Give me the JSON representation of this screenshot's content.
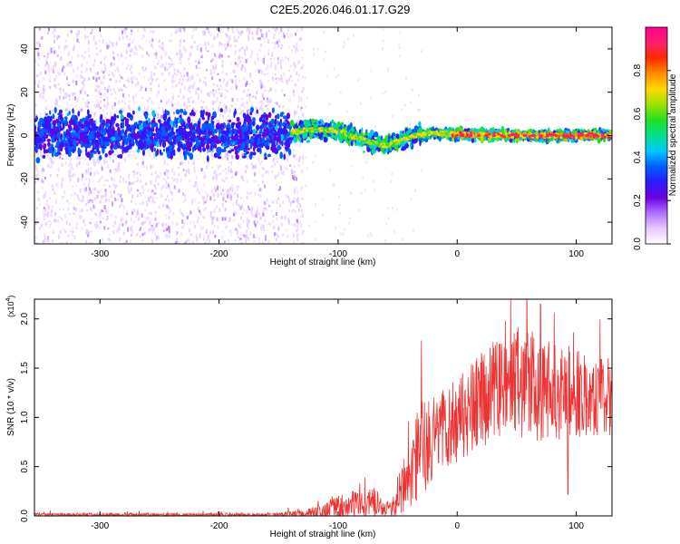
{
  "figure_title": "C2E5.2026.046.01.17.G29",
  "chart_data": [
    {
      "type": "heatmap",
      "xlabel": "Height of straight line (km)",
      "ylabel": "Frequency (Hz)",
      "xlim": [
        -355,
        130
      ],
      "ylim": [
        -50,
        50
      ],
      "x_ticks": [
        -300,
        -200,
        -100,
        0,
        100
      ],
      "y_ticks": [
        -40,
        -20,
        0,
        20,
        40
      ],
      "colorbar": {
        "label": "Normalized spectral amplitude",
        "range": [
          0,
          1
        ],
        "ticks": [
          0.0,
          0.2,
          0.4,
          0.6,
          0.8
        ],
        "tick_labels": [
          "0.0",
          "0.2",
          "0.4",
          "0.6",
          "0.8"
        ],
        "colors": [
          "#ffffff",
          "#e6c8ff",
          "#b070ff",
          "#6a00e0",
          "#2b1bff",
          "#0060ff",
          "#00c8ff",
          "#00e08a",
          "#20e020",
          "#a0e000",
          "#ffd800",
          "#ff8c00",
          "#ff2a00",
          "#ff1f6b",
          "#ff008c"
        ]
      },
      "signal_track": [
        {
          "x": -350,
          "y": 1.0
        },
        {
          "x": -300,
          "y": 0.5
        },
        {
          "x": -250,
          "y": 0.5
        },
        {
          "x": -200,
          "y": 0.0
        },
        {
          "x": -160,
          "y": 0.5
        },
        {
          "x": -140,
          "y": 1.5
        },
        {
          "x": -125,
          "y": 2.5
        },
        {
          "x": -110,
          "y": 2.5
        },
        {
          "x": -95,
          "y": 1.5
        },
        {
          "x": -85,
          "y": -1.0
        },
        {
          "x": -70,
          "y": -3.5
        },
        {
          "x": -58,
          "y": -4.5
        },
        {
          "x": -48,
          "y": -2.5
        },
        {
          "x": -35,
          "y": 0.0
        },
        {
          "x": -20,
          "y": 1.0
        },
        {
          "x": 0,
          "y": 0.5
        },
        {
          "x": 50,
          "y": 0.0
        },
        {
          "x": 130,
          "y": 0.0
        }
      ],
      "scatter_boundary_x": -140
    },
    {
      "type": "line",
      "xlabel": "Height of straight line (km)",
      "ylabel": "SNR (10 * v/v)",
      "y_multiplier": "(x10",
      "y_multiplier_exp": "4",
      "y_multiplier_close": ")",
      "xlim": [
        -355,
        130
      ],
      "ylim": [
        0,
        2.2
      ],
      "x_ticks": [
        -300,
        -200,
        -100,
        0,
        100
      ],
      "y_ticks": [
        0.0,
        0.5,
        1.0,
        1.5,
        2.0
      ],
      "y_tick_labels": [
        "0.0",
        "0.5",
        "1.0",
        "1.5",
        "2.0"
      ],
      "color": "#ee3333",
      "envelope": [
        {
          "x": -355,
          "base": 0.01,
          "amp": 0.02
        },
        {
          "x": -150,
          "base": 0.01,
          "amp": 0.02
        },
        {
          "x": -120,
          "base": 0.03,
          "amp": 0.06
        },
        {
          "x": -100,
          "base": 0.08,
          "amp": 0.12
        },
        {
          "x": -85,
          "base": 0.12,
          "amp": 0.15
        },
        {
          "x": -70,
          "base": 0.15,
          "amp": 0.16
        },
        {
          "x": -60,
          "base": 0.06,
          "amp": 0.06
        },
        {
          "x": -50,
          "base": 0.18,
          "amp": 0.2
        },
        {
          "x": -40,
          "base": 0.45,
          "amp": 0.35
        },
        {
          "x": -30,
          "base": 0.65,
          "amp": 0.55
        },
        {
          "x": -20,
          "base": 0.8,
          "amp": 0.4
        },
        {
          "x": 0,
          "base": 0.95,
          "amp": 0.45
        },
        {
          "x": 20,
          "base": 1.15,
          "amp": 0.5
        },
        {
          "x": 40,
          "base": 1.35,
          "amp": 0.55
        },
        {
          "x": 70,
          "base": 1.3,
          "amp": 0.55
        },
        {
          "x": 100,
          "base": 1.25,
          "amp": 0.45
        },
        {
          "x": 130,
          "base": 1.2,
          "amp": 0.4
        }
      ],
      "peaks": [
        {
          "x": -30,
          "y": 1.78
        },
        {
          "x": 45,
          "y": 2.2
        },
        {
          "x": 70,
          "y": 2.15
        },
        {
          "x": 93,
          "y": 2.15
        },
        {
          "x": 93,
          "y": 0.22
        }
      ]
    }
  ]
}
